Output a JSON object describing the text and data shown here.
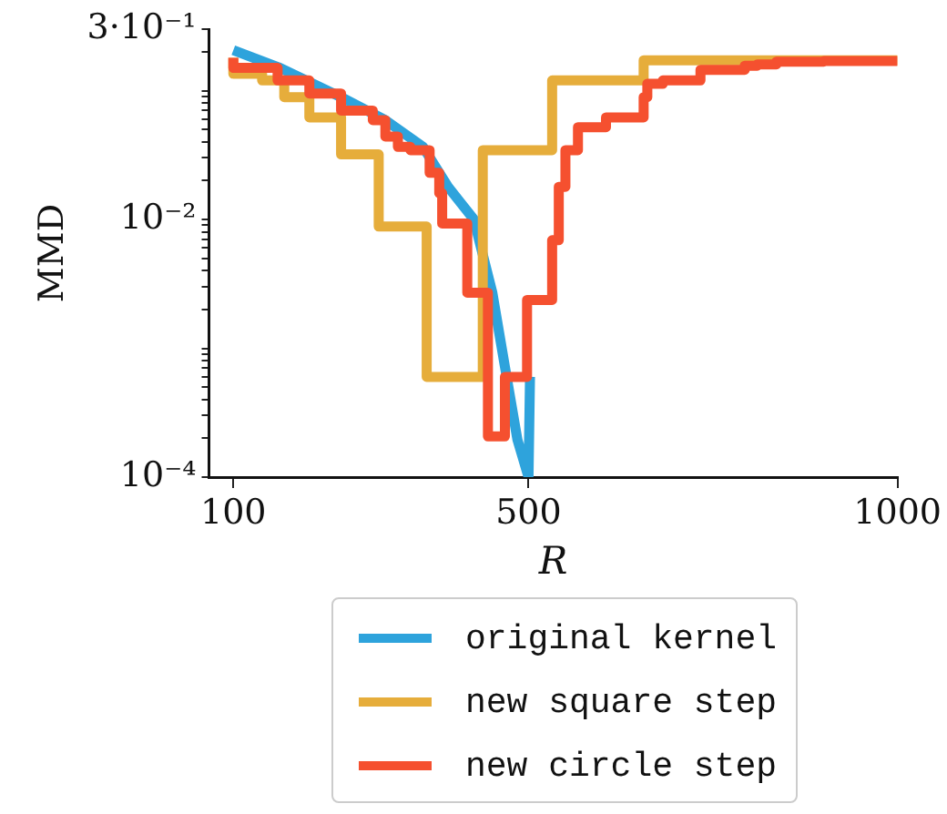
{
  "chart_data": {
    "type": "line",
    "xlabel": "R",
    "ylabel": "MMD",
    "xlim": [
      67,
      1000
    ],
    "xticks": [
      100,
      500,
      1000
    ],
    "ylim": [
      0.0001,
      0.3
    ],
    "log": "y",
    "yticks": [
      {
        "value": 0.0001,
        "label": "10⁻⁴"
      },
      {
        "value": 0.0002,
        "label": null
      },
      {
        "value": 0.0003,
        "label": null
      },
      {
        "value": 0.0004,
        "label": null
      },
      {
        "value": 0.0005,
        "label": null
      },
      {
        "value": 0.0006,
        "label": null
      },
      {
        "value": 0.0007,
        "label": null
      },
      {
        "value": 0.0008,
        "label": null
      },
      {
        "value": 0.0009,
        "label": null
      },
      {
        "value": 0.001,
        "label": null
      },
      {
        "value": 0.002,
        "label": null
      },
      {
        "value": 0.003,
        "label": null
      },
      {
        "value": 0.004,
        "label": null
      },
      {
        "value": 0.005,
        "label": null
      },
      {
        "value": 0.006,
        "label": null
      },
      {
        "value": 0.007,
        "label": null
      },
      {
        "value": 0.008,
        "label": null
      },
      {
        "value": 0.009,
        "label": null
      },
      {
        "value": 0.01,
        "label": "10⁻²"
      },
      {
        "value": 0.02,
        "label": null
      },
      {
        "value": 0.03,
        "label": null
      },
      {
        "value": 0.04,
        "label": null
      },
      {
        "value": 0.05,
        "label": null
      },
      {
        "value": 0.06,
        "label": null
      },
      {
        "value": 0.07,
        "label": null
      },
      {
        "value": 0.08,
        "label": null
      },
      {
        "value": 0.09,
        "label": null
      },
      {
        "value": 0.1,
        "label": null
      },
      {
        "value": 0.2,
        "label": null
      },
      {
        "value": 0.3,
        "label": "3·10⁻¹"
      }
    ],
    "grid": false,
    "legend": "bottom",
    "marker": "none",
    "series": [
      {
        "name": "original kernel",
        "type": "line",
        "color": "#2ea3dc",
        "x": [
          100,
          161,
          246,
          306,
          357,
          391,
          426,
          451,
          468,
          485,
          500,
          502
        ],
        "values": [
          0.206,
          0.152,
          0.089,
          0.059,
          0.0366,
          0.0179,
          0.01,
          0.0027,
          0.00072,
          0.000195,
          0.0001,
          0.0006
        ]
      },
      {
        "name": "new square step",
        "type": "step",
        "color": "#e6ad3b",
        "x": [
          100,
          139,
          169,
          203,
          246,
          297,
          362,
          438,
          532,
          656,
          793,
          1000
        ],
        "values": [
          0.18,
          0.135,
          0.12,
          0.089,
          0.062,
          0.032,
          0.0088,
          0.0006,
          0.0345,
          0.12,
          0.172,
          0.172
        ]
      },
      {
        "name": "new circle step",
        "type": "step",
        "color": "#f5502f",
        "x": [
          100,
          160,
          203,
          246,
          289,
          306,
          323,
          340,
          366,
          379,
          383,
          417,
          445,
          468,
          498,
          532,
          541,
          550,
          567,
          605,
          656,
          661,
          682,
          733,
          793,
          810,
          836,
          900,
          964,
          1000
        ],
        "values": [
          0.18,
          0.15,
          0.12,
          0.095,
          0.07,
          0.059,
          0.044,
          0.0366,
          0.0345,
          0.023,
          0.016,
          0.0093,
          0.0027,
          0.000207,
          0.0006,
          0.00237,
          0.0069,
          0.0179,
          0.0345,
          0.052,
          0.062,
          0.089,
          0.113,
          0.12,
          0.145,
          0.156,
          0.16,
          0.168,
          0.17,
          0.17
        ]
      }
    ]
  }
}
